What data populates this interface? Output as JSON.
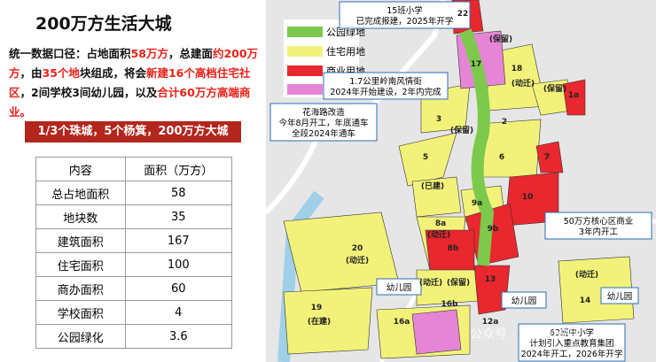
{
  "title": "200万方生活大城",
  "intro": [
    {
      "text": "统一数据口径：占地面积",
      "color": "#111111"
    },
    {
      "text": "58万方",
      "color": "#e8221a"
    },
    {
      "text": "，总建面",
      "color": "#111111"
    },
    {
      "text": "约200万方",
      "color": "#e8221a"
    },
    {
      "text": "，由",
      "color": "#111111"
    },
    {
      "text": "35个地",
      "color": "#e8221a"
    },
    {
      "text": "块组成，将会",
      "color": "#111111"
    },
    {
      "text": "新建16个高档住宅社区",
      "color": "#e8221a"
    },
    {
      "text": "，2间学校3间幼儿园，以及",
      "color": "#111111"
    },
    {
      "text": "合计60万方高端商业。",
      "color": "#e8221a"
    }
  ],
  "banner": "1/3个珠城，5个杨箕，200万方大城",
  "table": {
    "header": [
      "内容",
      "面积（万方）"
    ],
    "rows": [
      [
        "总占地面积",
        "58"
      ],
      [
        "地块数",
        "35"
      ],
      [
        "建筑面积",
        "167"
      ],
      [
        "住宅面积",
        "100"
      ],
      [
        "商办面积",
        "60"
      ],
      [
        "学校面积",
        "4"
      ],
      [
        "公园绿化",
        "3.6"
      ]
    ]
  },
  "map": {
    "legend": [
      "公园绿地",
      "住宅用地",
      "商业用地"
    ],
    "callouts": [
      {
        "lines": [
          "15班小学",
          "已完成报建，2025年开学"
        ]
      },
      {
        "lines": [
          "1.7公里岭南风情街",
          "2024年开始建设，2年内完成"
        ]
      },
      {
        "lines": [
          "花海路改造",
          "今年8月开工，年底通车",
          "全段2024年通车"
        ]
      },
      {
        "lines": [
          "50万方核心区商业",
          "3年内开工"
        ]
      },
      {
        "lines": [
          "幼儿园"
        ]
      },
      {
        "lines": [
          "幼儿园"
        ]
      },
      {
        "lines": [
          "幼儿园"
        ]
      },
      {
        "lines": [
          "63班中小学",
          "计划引入重点教育集团",
          "2024年开工，2026年开学"
        ]
      }
    ],
    "parcels": [
      "22",
      "17",
      "(保留)",
      "18",
      "(动迁)",
      "(保留)",
      "1a",
      "2",
      "3",
      "(保留)",
      "5",
      "6",
      "7",
      "(已建)",
      "10",
      "8a",
      "9a",
      "(动迁)",
      "9b",
      "8b",
      "20",
      "(动迁)",
      "(保留)",
      "(动迁)",
      "13",
      "(动迁)",
      "14",
      "19",
      "(在建)",
      "16a",
      "16b",
      "12a"
    ]
  },
  "watermark": "公众号 · 南沙房说房"
}
